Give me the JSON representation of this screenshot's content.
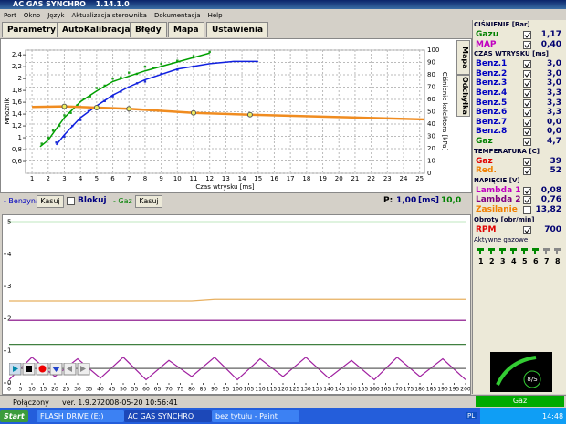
{
  "window": {
    "title": "AC GAS SYNCHRO",
    "version": "1.14.1.0"
  },
  "menu": [
    "Port",
    "Okno",
    "Język",
    "Aktualizacja sterownika",
    "Dokumentacja",
    "Help"
  ],
  "tabs": [
    "Parametry",
    "AutoKalibracja",
    "Błędy",
    "Mapa",
    "Ustawienia"
  ],
  "side_tabs": [
    "Mapa",
    "Odchyłka"
  ],
  "map_chart": {
    "type": "scatter",
    "ylabel": "Mnożnik",
    "xlabel": "Czas wtrysku [ms]",
    "y2label": "Ciśnienie kolektora [kPa]",
    "xlim": [
      0.6,
      25.3
    ],
    "xticks": [
      1,
      2,
      3,
      4,
      5,
      6,
      7,
      8,
      9,
      10,
      11,
      12,
      13,
      14,
      15,
      16,
      17,
      18,
      19,
      20,
      21,
      22,
      23,
      24,
      25
    ],
    "ylim": [
      0.4,
      2.48
    ],
    "yticks": [
      {
        "value": 0.6,
        "label": "0,6"
      },
      {
        "value": 0.8,
        "label": "0,8"
      },
      1,
      {
        "value": 1.2,
        "label": "1,2"
      },
      {
        "value": 1.4,
        "label": "1,4"
      },
      {
        "value": 1.6,
        "label": "1,6"
      },
      {
        "value": 1.8,
        "label": "1,8"
      },
      2,
      {
        "value": 2.2,
        "label": "2,2"
      },
      {
        "value": 2.4,
        "label": "2,4"
      }
    ],
    "y2lim": [
      0,
      100
    ],
    "y2ticks": [
      0,
      10,
      20,
      30,
      40,
      50,
      60,
      70,
      80,
      90,
      100
    ],
    "grid": true,
    "series": [
      {
        "style": "points",
        "color": "#20a020",
        "x": [
          1.6,
          2,
          2.3,
          2.7,
          3,
          3.4,
          3.8,
          4.2,
          4.6,
          5,
          5.5,
          6,
          6.5,
          7,
          7.5,
          8,
          8.5,
          9,
          10,
          11,
          12
        ],
        "values": [
          0.9,
          1.0,
          1.12,
          1.2,
          1.38,
          1.42,
          1.55,
          1.66,
          1.7,
          1.84,
          1.88,
          2.0,
          2.02,
          2.1,
          2.08,
          2.2,
          2.18,
          2.25,
          2.3,
          2.38,
          2.45
        ]
      },
      {
        "style": "points",
        "color": "#2030d0",
        "x": [
          2.5,
          3,
          3.5,
          4,
          4.5,
          5,
          5.5,
          6,
          6.5,
          7,
          7.5,
          8,
          9,
          10,
          11
        ],
        "values": [
          0.92,
          1.02,
          1.2,
          1.3,
          1.45,
          1.5,
          1.62,
          1.7,
          1.78,
          1.85,
          1.92,
          1.95,
          2.08,
          2.15,
          2.2
        ]
      },
      {
        "style": "line",
        "color": "#00a000",
        "x": [
          1.5,
          2,
          3,
          4,
          5,
          6,
          8,
          10,
          12
        ],
        "values": [
          0.85,
          0.96,
          1.34,
          1.61,
          1.79,
          1.95,
          2.13,
          2.28,
          2.43
        ]
      },
      {
        "style": "line",
        "color": "#1020e0",
        "x": [
          2.5,
          3,
          4,
          5,
          6,
          7,
          8,
          10,
          12,
          13.5,
          15
        ],
        "values": [
          0.88,
          1.05,
          1.34,
          1.54,
          1.72,
          1.86,
          1.98,
          2.16,
          2.25,
          2.29,
          2.29
        ]
      },
      {
        "style": "line",
        "color": "#f08c20",
        "x": [
          1,
          3,
          5,
          7,
          11,
          14.5,
          20,
          25.3
        ],
        "values": [
          1.52,
          1.53,
          1.51,
          1.49,
          1.42,
          1.39,
          1.35,
          1.31
        ]
      },
      {
        "style": "markers",
        "color": "#f0f060",
        "x": [
          3,
          5,
          7,
          11,
          14.5
        ],
        "values": [
          1.53,
          1.51,
          1.49,
          1.42,
          1.39
        ]
      }
    ]
  },
  "map_controls": {
    "benzyna": "- Benzyna",
    "kasuj1": "Kasuj",
    "blokuj": "Blokuj",
    "gaz": "- Gaz",
    "kasuj2": "Kasuj",
    "p": "P:",
    "p_value": "1,00",
    "unit": "[ms]",
    "value2": "10,0"
  },
  "live_chart": {
    "type": "line",
    "xlim": [
      0,
      200
    ],
    "xticks": [
      0,
      5,
      10,
      15,
      20,
      25,
      30,
      35,
      40,
      45,
      50,
      55,
      60,
      65,
      70,
      75,
      80,
      85,
      90,
      95,
      100,
      105,
      110,
      115,
      120,
      125,
      130,
      135,
      140,
      145,
      150,
      155,
      160,
      165,
      170,
      175,
      180,
      185,
      190,
      195,
      200
    ],
    "ylim": [
      0,
      5.1
    ],
    "yticks": [
      0,
      1,
      2,
      3,
      4,
      5
    ],
    "x": [
      0,
      10,
      20,
      30,
      40,
      50,
      60,
      70,
      80,
      90,
      100,
      110,
      120,
      130,
      140,
      150,
      160,
      170,
      180,
      190,
      200
    ],
    "series": [
      {
        "color": "#00a000",
        "values": [
          5,
          5,
          5,
          5,
          5,
          5,
          5,
          5,
          5,
          5,
          5,
          5,
          5,
          5,
          5,
          5,
          5,
          5,
          5,
          5,
          5
        ]
      },
      {
        "color": "#e8b060",
        "values": [
          2.55,
          2.55,
          2.55,
          2.55,
          2.55,
          2.55,
          2.55,
          2.55,
          2.55,
          2.6,
          2.6,
          2.6,
          2.6,
          2.6,
          2.6,
          2.6,
          2.6,
          2.6,
          2.6,
          2.6,
          2.6
        ]
      },
      {
        "color": "#800080",
        "values": [
          1.95,
          1.95,
          1.95,
          1.95,
          1.95,
          1.95,
          1.95,
          1.95,
          1.95,
          1.95,
          1.95,
          1.95,
          1.95,
          1.95,
          1.95,
          1.95,
          1.95,
          1.95,
          1.95,
          1.95,
          1.95
        ]
      },
      {
        "color": "#408040",
        "values": [
          1.2,
          1.2,
          1.2,
          1.2,
          1.2,
          1.2,
          1.2,
          1.2,
          1.2,
          1.2,
          1.2,
          1.2,
          1.2,
          1.2,
          1.2,
          1.2,
          1.2,
          1.2,
          1.2,
          1.2,
          1.2
        ]
      },
      {
        "color": "#a020a0",
        "values": [
          0.1,
          0.8,
          0.2,
          0.75,
          0.15,
          0.8,
          0.1,
          0.7,
          0.2,
          0.8,
          0.1,
          0.75,
          0.2,
          0.8,
          0.15,
          0.7,
          0.1,
          0.8,
          0.2,
          0.75,
          0.1
        ]
      },
      {
        "color": "#606060",
        "values": [
          0.45,
          0.45,
          0.45,
          0.45,
          0.45,
          0.45,
          0.45,
          0.45,
          0.45,
          0.45,
          0.45,
          0.45,
          0.45,
          0.45,
          0.45,
          0.45,
          0.45,
          0.45,
          0.45,
          0.45,
          0.45
        ]
      }
    ]
  },
  "sections": [
    {
      "title": "CIŚNIENIE [Bar]",
      "rows": [
        {
          "label": "Gazu",
          "value": "1,17",
          "color": "#008000",
          "checked": true
        },
        {
          "label": "MAP",
          "value": "0,40",
          "color": "#c000c0",
          "checked": true
        }
      ]
    },
    {
      "title": "CZAS WTRYSKU [ms]",
      "rows": [
        {
          "label": "Benz.1",
          "value": "3,0",
          "color": "#0000c0",
          "checked": true
        },
        {
          "label": "Benz.2",
          "value": "3,0",
          "color": "#0000c0",
          "checked": true
        },
        {
          "label": "Benz.3",
          "value": "3,0",
          "color": "#0000c0",
          "checked": true
        },
        {
          "label": "Benz.4",
          "value": "3,3",
          "color": "#0000c0",
          "checked": true
        },
        {
          "label": "Benz.5",
          "value": "3,3",
          "color": "#0000c0",
          "checked": true
        },
        {
          "label": "Benz.6",
          "value": "3,3",
          "color": "#0000c0",
          "checked": true
        },
        {
          "label": "Benz.7",
          "value": "0,0",
          "color": "#0000c0",
          "checked": true
        },
        {
          "label": "Benz.8",
          "value": "0,0",
          "color": "#0000c0",
          "checked": true
        },
        {
          "label": "Gaz",
          "value": "4,7",
          "color": "#008000",
          "checked": true
        }
      ]
    },
    {
      "title": "TEMPERATURA [C]",
      "rows": [
        {
          "label": "Gaz",
          "value": "39",
          "color": "#e00000",
          "checked": true
        },
        {
          "label": "Red.",
          "value": "52",
          "color": "#f08000",
          "checked": true
        }
      ]
    },
    {
      "title": "NAPIĘCIE [V]",
      "rows": [
        {
          "label": "Lambda 1",
          "value": "0,08",
          "color": "#c000c0",
          "checked": true
        },
        {
          "label": "Lambda 2",
          "value": "0,76",
          "color": "#800080",
          "checked": true
        },
        {
          "label": "Zasilanie",
          "value": "13,82",
          "color": "#f08000",
          "checked": false
        }
      ]
    },
    {
      "title": "Obroty [obr/min]",
      "rows": [
        {
          "label": "RPM",
          "value": "700",
          "color": "#e00000",
          "checked": true
        }
      ]
    }
  ],
  "injectors": {
    "title": "Aktywne gazowe",
    "numbers": [
      "1",
      "2",
      "3",
      "4",
      "5",
      "6",
      "7",
      "8"
    ]
  },
  "gauge": "8/S",
  "status": {
    "state": "Połączony",
    "version": "ver. 1.9.27",
    "datetime": "2008-05-20 10:56:41",
    "fuel": "Gaz"
  },
  "taskbar": {
    "start": "Start",
    "items": [
      "FLASH DRIVE (E:)",
      "AC GAS SYNCHRO",
      "bez tytułu - Paint"
    ],
    "lang": "PL",
    "clock": "14:48"
  }
}
